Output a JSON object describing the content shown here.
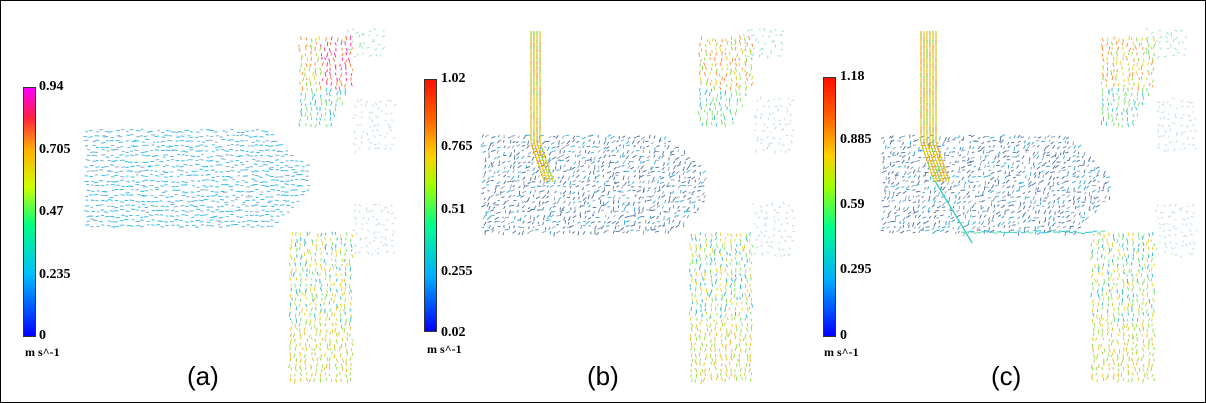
{
  "panels": [
    {
      "caption": "(a)",
      "colorbar": {
        "max": "0.94",
        "t3": "0.705",
        "mid": "0.47",
        "t1": "0.235",
        "min": "0",
        "unit": "m s^-1"
      }
    },
    {
      "caption": "(b)",
      "colorbar": {
        "max": "1.02",
        "t3": "0.765",
        "mid": "0.51",
        "t1": "0.255",
        "min": "0.02",
        "unit": "m s^-1"
      }
    },
    {
      "caption": "(c)",
      "colorbar": {
        "max": "1.18",
        "t3": "0.885",
        "mid": "0.59",
        "t1": "0.295",
        "min": "0",
        "unit": "m s^-1"
      }
    }
  ],
  "colors": {
    "colorbar_gradient": [
      "#0000ff",
      "#00bfff",
      "#00ff7f",
      "#c8ff00",
      "#ffcc00",
      "#ff4400",
      "#ff00ff"
    ],
    "flow_slow": "#3a5a8a",
    "flow_mid": "#22c8e0",
    "flow_fast": "#e8d020"
  }
}
